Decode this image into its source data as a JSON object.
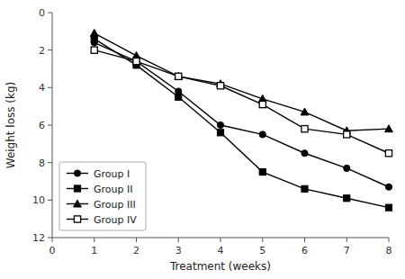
{
  "chart_data": {
    "type": "line",
    "x": [
      1,
      2,
      3,
      4,
      5,
      6,
      7,
      8
    ],
    "series": [
      {
        "name": "Group I",
        "color": "#000000",
        "marker": "circle",
        "values": [
          1.6,
          2.6,
          4.2,
          6.0,
          6.5,
          7.5,
          8.3,
          9.3
        ]
      },
      {
        "name": "Group II",
        "color": "#000000",
        "marker": "square",
        "values": [
          1.4,
          2.8,
          4.5,
          6.4,
          8.5,
          9.4,
          9.9,
          10.4
        ]
      },
      {
        "name": "Group III",
        "color": "#000000",
        "marker": "triangle",
        "values": [
          1.1,
          2.3,
          3.4,
          3.8,
          4.6,
          5.3,
          6.3,
          6.2
        ]
      },
      {
        "name": "Group IV",
        "color": "#000000",
        "marker": "square-open",
        "values": [
          2.0,
          2.6,
          3.4,
          3.9,
          4.9,
          6.2,
          6.5,
          7.5
        ]
      }
    ],
    "x_label": "Treatment (weeks)",
    "y_label": "Weight loss (kg)",
    "xlim": [
      0,
      8
    ],
    "ylim": [
      12,
      0
    ],
    "xticks": [
      0,
      1,
      2,
      3,
      4,
      5,
      6,
      7,
      8
    ],
    "yticks": [
      0,
      2,
      4,
      6,
      8,
      10,
      12
    ],
    "grid": false,
    "legend": "lower left"
  }
}
